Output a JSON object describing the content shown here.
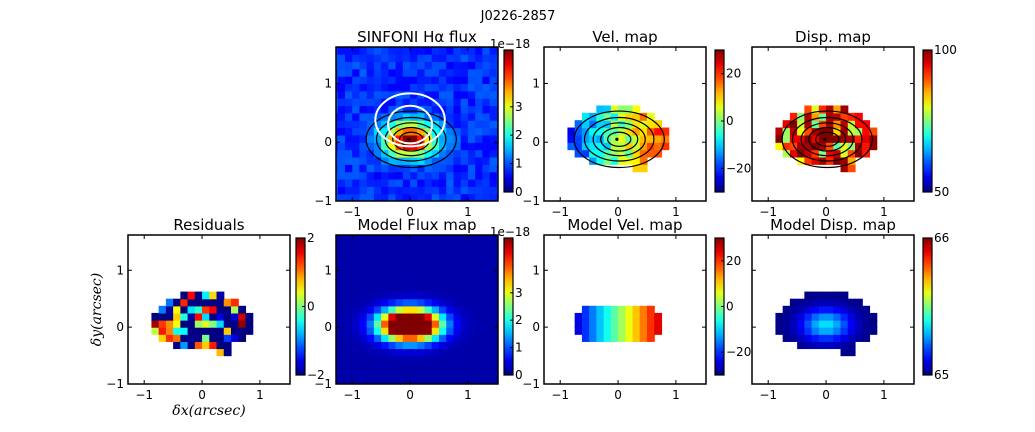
{
  "figure_title": "J0226-2857",
  "chart_data": [
    {
      "type": "heatmap",
      "id": "flux",
      "title": "SINFONI Hα flux",
      "colormap": "jet",
      "clim": [
        0,
        5
      ],
      "cbar_ticks": [
        "0",
        "1",
        "2",
        "3"
      ],
      "cbar_tick_values": [
        0,
        1,
        2,
        3
      ],
      "cbar_offset": "1e−18",
      "xlim": [
        -1.28,
        1.52
      ],
      "ylim": [
        -1,
        1.62
      ],
      "xticks": [
        "−1",
        "0",
        "1"
      ],
      "yticks": [
        "−1",
        "0",
        "1"
      ],
      "contours": true,
      "white_contours": true
    },
    {
      "type": "heatmap",
      "id": "vel",
      "title": "Vel. map",
      "colormap": "jet",
      "clim": [
        -30,
        30
      ],
      "cbar_ticks": [
        "−20",
        "0",
        "20"
      ],
      "cbar_tick_values": [
        -20,
        0,
        20
      ],
      "xlim": [
        -1.28,
        1.52
      ],
      "ylim": [
        -1,
        1.62
      ],
      "xticks": [
        "−1",
        "0",
        "1"
      ],
      "yticks": [
        "−1",
        "0",
        "1"
      ],
      "contours": true
    },
    {
      "type": "heatmap",
      "id": "disp",
      "title": "Disp. map",
      "colormap": "jet",
      "clim": [
        50,
        100
      ],
      "cbar_ticks": [
        "50",
        "100"
      ],
      "cbar_tick_values": [
        50,
        100
      ],
      "xlim": [
        -1.28,
        1.52
      ],
      "ylim": [
        -1,
        1.62
      ],
      "xticks": [
        "−1",
        "0",
        "1"
      ],
      "yticks": [],
      "contours": true
    },
    {
      "type": "heatmap",
      "id": "resid",
      "title": "Residuals",
      "colormap": "jet",
      "clim": [
        -2,
        2
      ],
      "cbar_ticks": [
        "−2",
        "0",
        "2"
      ],
      "cbar_tick_values": [
        -2,
        0,
        2
      ],
      "xlim": [
        -1.28,
        1.52
      ],
      "ylim": [
        -1,
        1.62
      ],
      "xticks": [
        "−1",
        "0",
        "1"
      ],
      "yticks": [
        "−1",
        "0",
        "1"
      ],
      "xlabel": "δx(arcsec)",
      "ylabel": "δy(arcsec)"
    },
    {
      "type": "heatmap",
      "id": "mflux",
      "title": "Model Flux map",
      "colormap": "jet",
      "clim": [
        0,
        5
      ],
      "cbar_ticks": [
        "0",
        "1",
        "2",
        "3"
      ],
      "cbar_tick_values": [
        0,
        1,
        2,
        3
      ],
      "cbar_offset": "1e−18",
      "xlim": [
        -1.28,
        1.52
      ],
      "ylim": [
        -1,
        1.62
      ],
      "xticks": [
        "−1",
        "0",
        "1"
      ],
      "yticks": [
        "−1",
        "0",
        "1"
      ]
    },
    {
      "type": "heatmap",
      "id": "mvel",
      "title": "Model Vel. map",
      "colormap": "jet",
      "clim": [
        -30,
        30
      ],
      "cbar_ticks": [
        "−20",
        "0",
        "20"
      ],
      "cbar_tick_values": [
        -20,
        0,
        20
      ],
      "xlim": [
        -1.28,
        1.52
      ],
      "ylim": [
        -1,
        1.62
      ],
      "xticks": [
        "−1",
        "0",
        "1"
      ],
      "yticks": [
        "−1",
        "0",
        "1"
      ]
    },
    {
      "type": "heatmap",
      "id": "mdisp",
      "title": "Model Disp. map",
      "colormap": "jet",
      "clim": [
        65,
        66
      ],
      "cbar_ticks": [
        "65",
        "66"
      ],
      "cbar_tick_values": [
        65,
        66
      ],
      "xlim": [
        -1.28,
        1.52
      ],
      "ylim": [
        -1,
        1.62
      ],
      "xticks": [
        "−1",
        "0",
        "1"
      ],
      "yticks": []
    }
  ]
}
